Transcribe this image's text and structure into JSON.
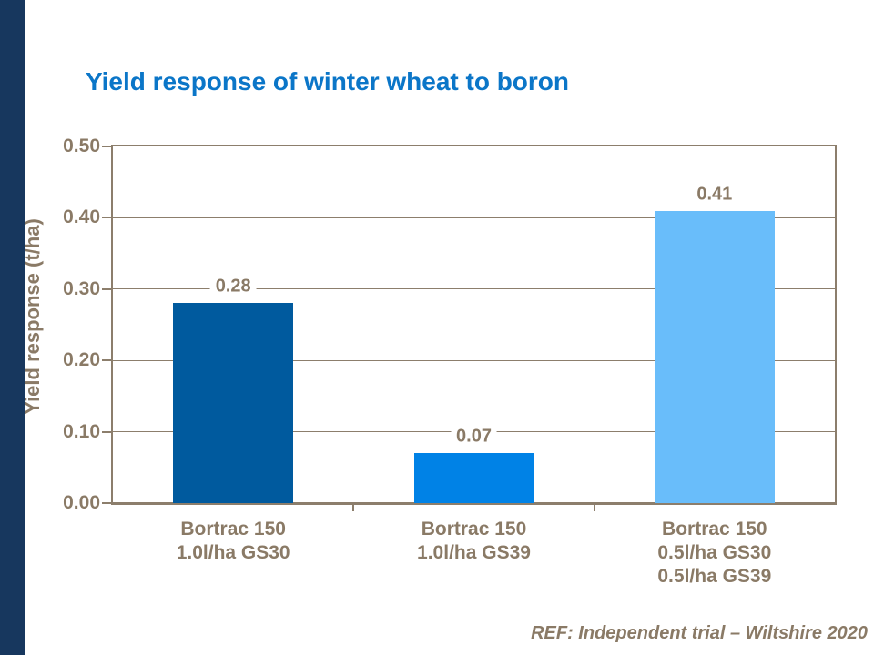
{
  "page": {
    "footer_ref": "REF: Independent trial – Wiltshire 2020"
  },
  "colors": {
    "title_blue": "#0B76C8",
    "axis_text_brown": "#8A7A66",
    "line_brown": "#8C7E6C",
    "left_strip_navy": "#17375E",
    "background": "#FFFFFF"
  },
  "chart_data": {
    "type": "bar",
    "title": "Yield response of winter wheat to boron",
    "xlabel": "",
    "ylabel": "Yield response (t/ha)",
    "ylim": [
      0,
      0.5
    ],
    "ytick_labels": [
      "0.00",
      "0.10",
      "0.20",
      "0.30",
      "0.40",
      "0.50"
    ],
    "grid": true,
    "legend": false,
    "categories": [
      [
        "Bortrac 150",
        "1.0l/ha GS30"
      ],
      [
        "Bortrac 150",
        "1.0l/ha GS39"
      ],
      [
        "Bortrac 150",
        "0.5l/ha GS30",
        "0.5l/ha GS39"
      ]
    ],
    "values": [
      0.28,
      0.07,
      0.41
    ],
    "value_labels": [
      "0.28",
      "0.07",
      "0.41"
    ],
    "bar_colors": [
      "#005A9E",
      "#0082E6",
      "#69BDFA"
    ],
    "annotation": "REF: Independent trial – Wiltshire 2020"
  }
}
